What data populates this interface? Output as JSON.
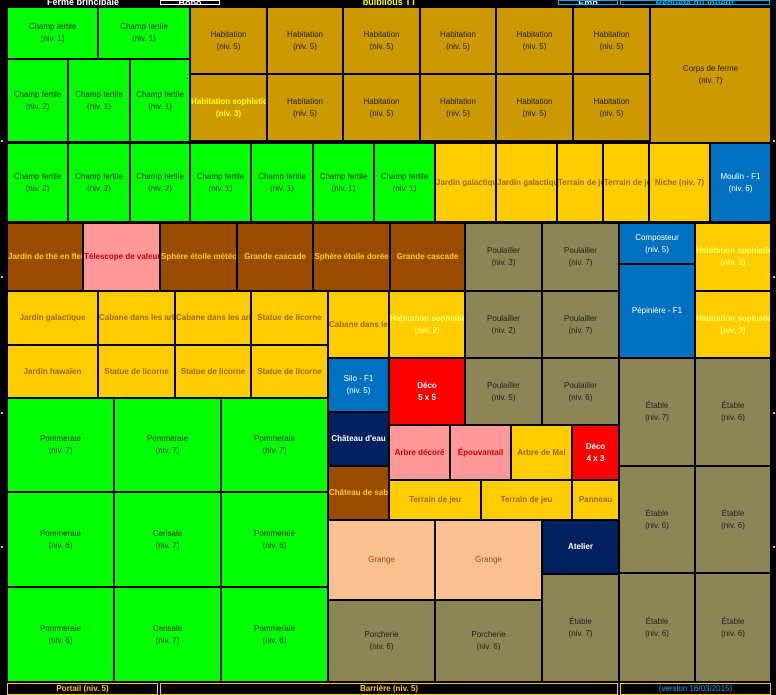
{
  "header": {
    "title": "Ferme principale",
    "label2": "Bobo",
    "player": "bulbilous TT",
    "label4": "Emp",
    "request": "Requête du joueur"
  },
  "footer": {
    "portal": "Portail (niv. 5)",
    "barrier": "Barrière (niv. 5)",
    "version": "(version 16/03/2015)"
  },
  "cells": [
    {
      "name": "Champ fertile",
      "level": "(niv. 1)"
    },
    {
      "name": "Champ fertile",
      "level": "(niv. 1)"
    },
    {
      "name": "Habitation",
      "level": "(niv. 5)"
    },
    {
      "name": "Habitation",
      "level": "(niv. 5)"
    },
    {
      "name": "Habitation",
      "level": "(niv. 5)"
    },
    {
      "name": "Habitation",
      "level": "(niv. 5)"
    },
    {
      "name": "Habitation",
      "level": "(niv. 5)"
    },
    {
      "name": "Habitation",
      "level": "(niv. 5)"
    },
    {
      "name": "Corps de ferme",
      "level": "(niv. 7)"
    },
    {
      "name": "Champ fertile",
      "level": "(niv. 2)"
    },
    {
      "name": "Champ fertile",
      "level": "(niv. 1)"
    },
    {
      "name": "Champ fertile",
      "level": "(niv. 1)"
    },
    {
      "name": "Habitation sophistiquée",
      "level": "(niv. 3)"
    },
    {
      "name": "Habitation",
      "level": "(niv. 5)"
    },
    {
      "name": "Habitation",
      "level": "(niv. 5)"
    },
    {
      "name": "Habitation",
      "level": "(niv. 5)"
    },
    {
      "name": "Habitation",
      "level": "(niv. 5)"
    },
    {
      "name": "Habitation",
      "level": "(niv. 5)"
    },
    {
      "name": "Champ fertile",
      "level": "(niv. 2)"
    },
    {
      "name": "Champ fertile",
      "level": "(niv. 2)"
    },
    {
      "name": "Champ fertile",
      "level": "(niv. 2)"
    },
    {
      "name": "Champ fertile",
      "level": "(niv. 1)"
    },
    {
      "name": "Champ fertile",
      "level": "(niv. 1)"
    },
    {
      "name": "Champ fertile",
      "level": "(niv. 1)"
    },
    {
      "name": "Champ fertile",
      "level": "(niv. 1)"
    },
    {
      "name": "Jardin galactique",
      "level": ""
    },
    {
      "name": "Jardin galactique",
      "level": ""
    },
    {
      "name": "Terrain de jeu",
      "level": ""
    },
    {
      "name": "Terrain de jeu",
      "level": ""
    },
    {
      "name": "Niche (niv. 7)",
      "level": ""
    },
    {
      "name": "Moulin - F1",
      "level": "(niv. 6)"
    },
    {
      "name": "Jardin de thé en fleurs",
      "level": ""
    },
    {
      "name": "Télescope de valeur",
      "level": ""
    },
    {
      "name": "Sphère étoile météore",
      "level": ""
    },
    {
      "name": "Grande cascade",
      "level": ""
    },
    {
      "name": "Sphère étoile dorée",
      "level": ""
    },
    {
      "name": "Grande cascade",
      "level": ""
    },
    {
      "name": "Poulailler",
      "level": "(niv. 3)"
    },
    {
      "name": "Poulailler",
      "level": "(niv. 7)"
    },
    {
      "name": "Composteur",
      "level": "(niv. 5)"
    },
    {
      "name": "Habitation sophistiquée",
      "level": "(niv. 2)"
    },
    {
      "name": "Jardin galactique",
      "level": ""
    },
    {
      "name": "Cabane dans les arbres",
      "level": ""
    },
    {
      "name": "Cabane dans les arbres",
      "level": ""
    },
    {
      "name": "Statue de licorne",
      "level": ""
    },
    {
      "name": "Cabane dans les arbres",
      "level": ""
    },
    {
      "name": "Habitation sophistiquée",
      "level": "(niv. 2)"
    },
    {
      "name": "Poulailler",
      "level": "(niv. 2)"
    },
    {
      "name": "Poulailler",
      "level": "(niv. 7)"
    },
    {
      "name": "Pépinière - F1",
      "level": ""
    },
    {
      "name": "Habitation sophistiquée",
      "level": "(niv. 3)"
    },
    {
      "name": "Jardin hawaïen",
      "level": ""
    },
    {
      "name": "Statue de licorne",
      "level": ""
    },
    {
      "name": "Statue de licorne",
      "level": ""
    },
    {
      "name": "Statue de licorne",
      "level": ""
    },
    {
      "name": "Silo - F1",
      "level": "(niv. 5)"
    },
    {
      "name": "Déco",
      "level": "5 x 5"
    },
    {
      "name": "Poulailler",
      "level": "(niv. 5)"
    },
    {
      "name": "Poulailler",
      "level": "(niv. 6)"
    },
    {
      "name": "Étable",
      "level": "(niv. 7)"
    },
    {
      "name": "Étable",
      "level": "(niv. 6)"
    },
    {
      "name": "Pommeraie",
      "level": "(niv. 7)"
    },
    {
      "name": "Pommeraie",
      "level": "(niv. 7)"
    },
    {
      "name": "Pommeraie",
      "level": "(niv. 7)"
    },
    {
      "name": "Château d'eau",
      "level": ""
    },
    {
      "name": "Arbre décoré",
      "level": ""
    },
    {
      "name": "Épouvantail",
      "level": ""
    },
    {
      "name": "Arbre de Mai",
      "level": ""
    },
    {
      "name": "Déco",
      "level": "4 x 3"
    },
    {
      "name": "Château de sable",
      "level": ""
    },
    {
      "name": "Terrain de jeu",
      "level": ""
    },
    {
      "name": "Terrain de jeu",
      "level": ""
    },
    {
      "name": "Panneau",
      "level": ""
    },
    {
      "name": "Étable",
      "level": "(niv. 6)"
    },
    {
      "name": "Étable",
      "level": "(niv. 6)"
    },
    {
      "name": "Pommeraie",
      "level": "(niv. 6)"
    },
    {
      "name": "Cerisale",
      "level": "(niv. 7)"
    },
    {
      "name": "Pommeraie",
      "level": "(niv. 6)"
    },
    {
      "name": "Grange",
      "level": ""
    },
    {
      "name": "Grange",
      "level": ""
    },
    {
      "name": "Atelier",
      "level": ""
    },
    {
      "name": "Pommeraie",
      "level": "(niv. 6)"
    },
    {
      "name": "Cerisale",
      "level": "(niv. 7)"
    },
    {
      "name": "Pommeraie",
      "level": "(niv. 6)"
    },
    {
      "name": "Porcherie",
      "level": "(niv. 6)"
    },
    {
      "name": "Porcherie",
      "level": "(niv. 6)"
    },
    {
      "name": "Étable",
      "level": "(niv. 7)"
    },
    {
      "name": "Étable",
      "level": "(niv. 6)"
    },
    {
      "name": "Étable",
      "level": "(niv. 6)"
    }
  ]
}
